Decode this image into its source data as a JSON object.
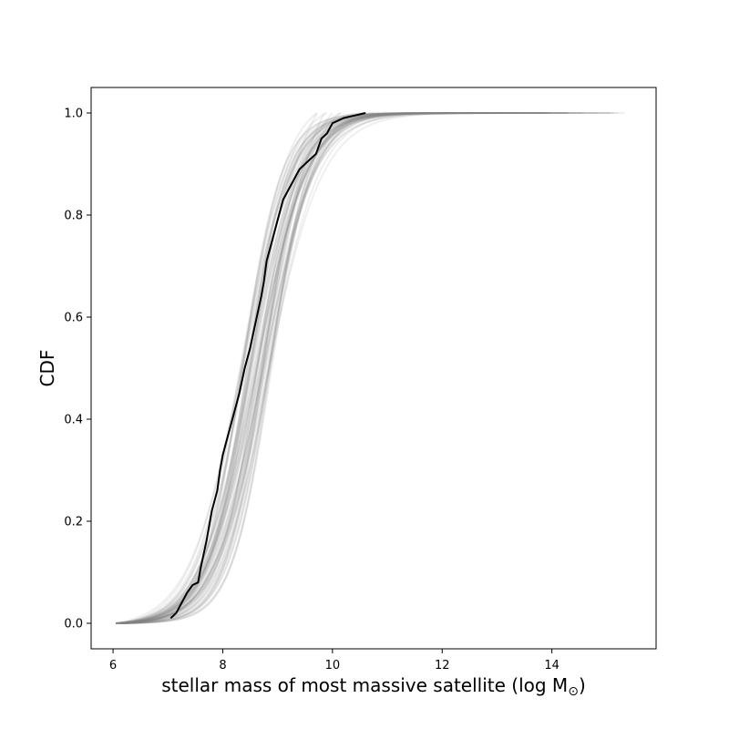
{
  "chart_data": {
    "type": "line",
    "title": "",
    "xlabel": "stellar mass of most massive satellite (log M",
    "xlabel_subscript": "⊙",
    "xlabel_suffix": ")",
    "ylabel": "CDF",
    "xlim": [
      5.6,
      15.9
    ],
    "ylim": [
      -0.05,
      1.05
    ],
    "xticks": [
      6,
      8,
      10,
      12,
      14
    ],
    "yticks": [
      0.0,
      0.2,
      0.4,
      0.6,
      0.8,
      1.0
    ],
    "xtick_labels": [
      "6",
      "8",
      "10",
      "12",
      "14"
    ],
    "ytick_labels": [
      "0.0",
      "0.2",
      "0.4",
      "0.6",
      "0.8",
      "1.0"
    ],
    "grid": false,
    "colors": {
      "observed": "#000000",
      "realizations": "#808080"
    },
    "series": [
      {
        "role": "observed",
        "color": "#000000",
        "x": [
          7.05,
          7.15,
          7.25,
          7.35,
          7.45,
          7.55,
          7.6,
          7.7,
          7.8,
          7.9,
          7.95,
          8.0,
          8.1,
          8.2,
          8.3,
          8.4,
          8.5,
          8.6,
          8.7,
          8.75,
          8.8,
          8.9,
          9.0,
          9.1,
          9.2,
          9.3,
          9.4,
          9.5,
          9.6,
          9.7,
          9.8,
          9.9,
          10.0,
          10.2,
          10.4,
          10.6
        ],
        "y": [
          0.01,
          0.02,
          0.04,
          0.06,
          0.075,
          0.08,
          0.11,
          0.16,
          0.22,
          0.26,
          0.3,
          0.33,
          0.37,
          0.41,
          0.45,
          0.5,
          0.54,
          0.59,
          0.64,
          0.67,
          0.71,
          0.75,
          0.79,
          0.83,
          0.85,
          0.87,
          0.89,
          0.9,
          0.91,
          0.92,
          0.95,
          0.96,
          0.98,
          0.99,
          0.995,
          1.0
        ]
      }
    ],
    "realizations": {
      "count": 60,
      "color": "#808080",
      "x_start": [
        6.05,
        6.1,
        6.15
      ],
      "x_end_range": [
        9.7,
        15.5
      ],
      "median_x": [
        8.3,
        8.9
      ],
      "width": [
        0.85,
        1.25
      ]
    }
  }
}
